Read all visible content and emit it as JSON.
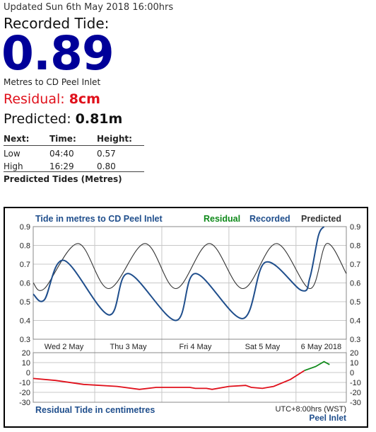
{
  "header": {
    "updated": "Updated Sun 6th May 2018 16:00hrs",
    "recorded_label": "Recorded Tide:",
    "recorded_value": "0.89",
    "units_text": "Metres to CD Peel Inlet",
    "residual_label": "Residual:",
    "residual_value": "8cm",
    "predicted_label": "Predicted:",
    "predicted_value": "0.81m"
  },
  "next_tides": {
    "headers": [
      "Next:",
      "Time:",
      "Height:"
    ],
    "rows": [
      [
        "Low",
        "04:40",
        "0.57"
      ],
      [
        "High",
        "16:29",
        "0.80"
      ]
    ],
    "footer": "Predicted Tides (Metres)"
  },
  "colors": {
    "recorded": "#1f4e8c",
    "predicted": "#333333",
    "residual_past": "#e0101b",
    "residual_recent": "#0f8a1a",
    "legend_residual": "#0f8a1a",
    "legend_recorded": "#1f4e8c",
    "title_blue": "#1f4e8c"
  },
  "chart_data": [
    {
      "type": "line",
      "title": "Tide in metres to CD Peel Inlet",
      "legend": [
        "Residual",
        "Recorded",
        "Predicted"
      ],
      "legend_placement": "top-right",
      "grid": true,
      "x_tick_labels": [
        "Wed 2 May",
        "Thu 3 May",
        "Fri 4 May",
        "Sat 5 May",
        "6 May 2018"
      ],
      "x_range_hours": [
        0,
        112
      ],
      "ylim": [
        0.3,
        0.9
      ],
      "yticks": [
        0.3,
        0.4,
        0.5,
        0.6,
        0.7,
        0.8,
        0.9
      ],
      "series": [
        {
          "name": "Predicted",
          "x": [
            0,
            4,
            16,
            27,
            40,
            51,
            63,
            75,
            87,
            99,
            105,
            112
          ],
          "y": [
            0.6,
            0.57,
            0.81,
            0.57,
            0.81,
            0.57,
            0.81,
            0.57,
            0.81,
            0.57,
            0.81,
            0.65
          ]
        },
        {
          "name": "Recorded",
          "x": [
            0,
            4,
            11,
            27,
            34,
            51,
            58,
            75,
            83,
            96,
            99,
            102,
            104
          ],
          "y": [
            0.54,
            0.51,
            0.72,
            0.43,
            0.65,
            0.4,
            0.65,
            0.41,
            0.71,
            0.56,
            0.63,
            0.85,
            0.9
          ]
        }
      ]
    },
    {
      "type": "line",
      "title": "Residual Tide in centimetres",
      "note": "UTC+8:00hrs (WST)",
      "location": "Peel Inlet",
      "ylim": [
        -30,
        20
      ],
      "yticks": [
        20,
        10,
        0,
        -10,
        -20,
        -30
      ],
      "series": [
        {
          "x": [
            0,
            8,
            18,
            30,
            38,
            44,
            56,
            58,
            62,
            64,
            70,
            76,
            78,
            82,
            86,
            92,
            97
          ],
          "y": [
            -6,
            -8,
            -12,
            -14,
            -17,
            -15,
            -15,
            -16,
            -16,
            -17,
            -14,
            -13,
            -15,
            -16,
            -14,
            -7,
            2
          ]
        },
        {
          "x": [
            97,
            101,
            104,
            106
          ],
          "y": [
            2,
            6,
            11,
            8
          ]
        }
      ]
    }
  ]
}
